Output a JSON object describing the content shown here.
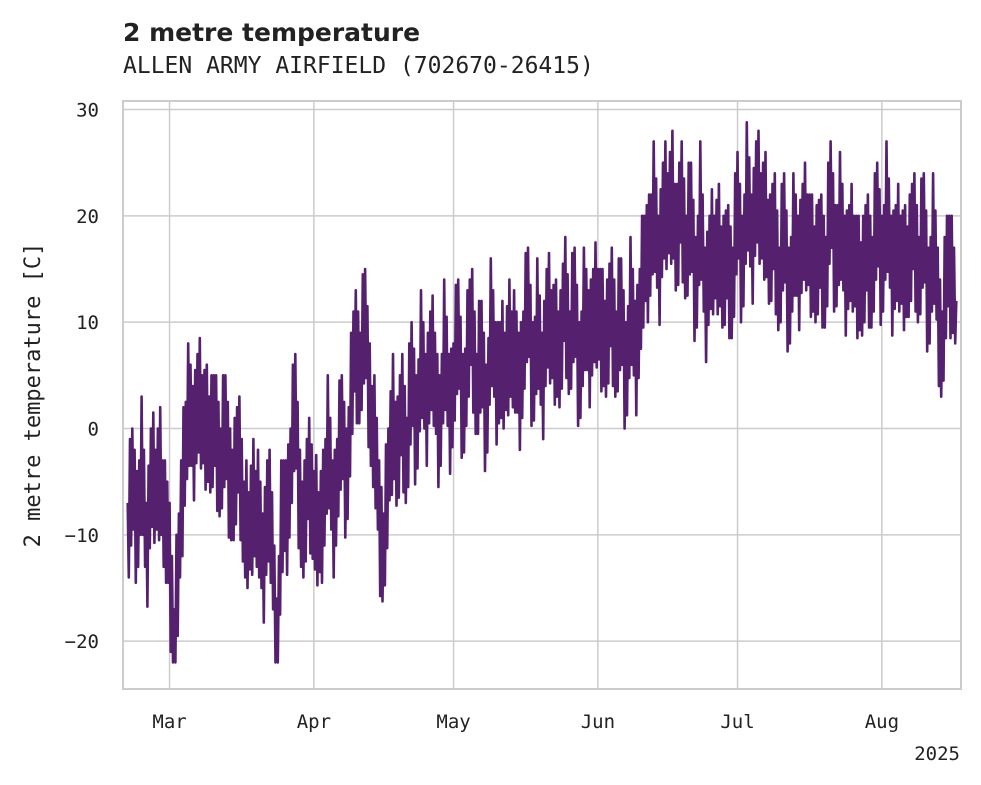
{
  "chart_data": {
    "type": "line",
    "title": "2 metre temperature",
    "subtitle": "ALLEN ARMY AIRFIELD (702670-26415)",
    "ylabel": "2 metre temperature [C]",
    "xlabel": "",
    "x_axis_year_label": "2025",
    "xlim": [
      "2025-02-19",
      "2025-08-18"
    ],
    "ylim": [
      -24.5,
      30.8
    ],
    "yticks": [
      -20,
      -10,
      0,
      10,
      20,
      30
    ],
    "xticks": [
      {
        "date": "2025-03-01",
        "label": "Mar"
      },
      {
        "date": "2025-04-01",
        "label": "Apr"
      },
      {
        "date": "2025-05-01",
        "label": "May"
      },
      {
        "date": "2025-06-01",
        "label": "Jun"
      },
      {
        "date": "2025-07-01",
        "label": "Jul"
      },
      {
        "date": "2025-08-01",
        "label": "Aug"
      }
    ],
    "grid": true,
    "line_color": "#55206e",
    "series": [
      {
        "sampling": "approx. 6-hourly",
        "points": [
          [
            "2025-02-20",
            -10
          ],
          [
            "2025-02-21",
            -6
          ],
          [
            "2025-02-22",
            -8
          ],
          [
            "2025-02-23",
            -4
          ],
          [
            "2025-02-24",
            -12
          ],
          [
            "2025-02-25",
            -3
          ],
          [
            "2025-02-26",
            -8
          ],
          [
            "2025-02-27",
            -2
          ],
          [
            "2025-02-28",
            -10
          ],
          [
            "2025-03-01",
            -12
          ],
          [
            "2025-03-02",
            -20
          ],
          [
            "2025-03-03",
            -14
          ],
          [
            "2025-03-04",
            -2
          ],
          [
            "2025-03-05",
            1
          ],
          [
            "2025-03-06",
            -1
          ],
          [
            "2025-03-07",
            4
          ],
          [
            "2025-03-08",
            -1
          ],
          [
            "2025-03-09",
            2
          ],
          [
            "2025-03-10",
            -2
          ],
          [
            "2025-03-11",
            0
          ],
          [
            "2025-03-12",
            -3
          ],
          [
            "2025-03-13",
            -1
          ],
          [
            "2025-03-14",
            -4
          ],
          [
            "2025-03-15",
            -6
          ],
          [
            "2025-03-16",
            -2
          ],
          [
            "2025-03-17",
            -8
          ],
          [
            "2025-03-18",
            -12
          ],
          [
            "2025-03-19",
            -5
          ],
          [
            "2025-03-20",
            -9
          ],
          [
            "2025-03-21",
            -13
          ],
          [
            "2025-03-22",
            -6
          ],
          [
            "2025-03-23",
            -12
          ],
          [
            "2025-03-24",
            -20
          ],
          [
            "2025-03-25",
            -10
          ],
          [
            "2025-03-26",
            -8
          ],
          [
            "2025-03-27",
            -3
          ],
          [
            "2025-03-28",
            1
          ],
          [
            "2025-03-29",
            -6
          ],
          [
            "2025-03-30",
            -10
          ],
          [
            "2025-03-31",
            -4
          ],
          [
            "2025-04-01",
            -7
          ],
          [
            "2025-04-02",
            -12
          ],
          [
            "2025-04-03",
            -6
          ],
          [
            "2025-04-04",
            -2
          ],
          [
            "2025-04-05",
            -8
          ],
          [
            "2025-04-06",
            -4
          ],
          [
            "2025-04-07",
            -1
          ],
          [
            "2025-04-08",
            -4
          ],
          [
            "2025-04-09",
            2
          ],
          [
            "2025-04-10",
            8
          ],
          [
            "2025-04-11",
            6
          ],
          [
            "2025-04-12",
            9
          ],
          [
            "2025-04-13",
            4
          ],
          [
            "2025-04-14",
            -2
          ],
          [
            "2025-04-15",
            -8
          ],
          [
            "2025-04-16",
            -11
          ],
          [
            "2025-04-17",
            -6
          ],
          [
            "2025-04-18",
            3
          ],
          [
            "2025-04-19",
            -4
          ],
          [
            "2025-04-20",
            2
          ],
          [
            "2025-04-21",
            -2
          ],
          [
            "2025-04-22",
            4
          ],
          [
            "2025-04-23",
            1
          ],
          [
            "2025-04-24",
            6
          ],
          [
            "2025-04-25",
            2
          ],
          [
            "2025-04-26",
            8
          ],
          [
            "2025-04-27",
            3
          ],
          [
            "2025-04-28",
            1
          ],
          [
            "2025-04-29",
            7
          ],
          [
            "2025-04-30",
            2
          ],
          [
            "2025-05-01",
            5
          ],
          [
            "2025-05-02",
            8
          ],
          [
            "2025-05-03",
            3
          ],
          [
            "2025-05-04",
            6
          ],
          [
            "2025-05-05",
            10
          ],
          [
            "2025-05-06",
            4
          ],
          [
            "2025-05-07",
            6
          ],
          [
            "2025-05-08",
            2
          ],
          [
            "2025-05-09",
            9
          ],
          [
            "2025-05-10",
            5
          ],
          [
            "2025-05-11",
            7
          ],
          [
            "2025-05-12",
            3
          ],
          [
            "2025-05-13",
            10
          ],
          [
            "2025-05-14",
            6
          ],
          [
            "2025-05-15",
            4
          ],
          [
            "2025-05-16",
            8
          ],
          [
            "2025-05-17",
            11
          ],
          [
            "2025-05-18",
            6
          ],
          [
            "2025-05-19",
            9
          ],
          [
            "2025-05-20",
            4
          ],
          [
            "2025-05-21",
            12
          ],
          [
            "2025-05-22",
            7
          ],
          [
            "2025-05-23",
            10
          ],
          [
            "2025-05-24",
            6
          ],
          [
            "2025-05-25",
            13
          ],
          [
            "2025-05-26",
            8
          ],
          [
            "2025-05-27",
            11
          ],
          [
            "2025-05-28",
            6
          ],
          [
            "2025-05-29",
            10
          ],
          [
            "2025-05-30",
            8
          ],
          [
            "2025-05-31",
            12
          ],
          [
            "2025-06-01",
            9
          ],
          [
            "2025-06-02",
            11
          ],
          [
            "2025-06-03",
            7
          ],
          [
            "2025-06-04",
            12
          ],
          [
            "2025-06-05",
            8
          ],
          [
            "2025-06-06",
            10
          ],
          [
            "2025-06-07",
            6
          ],
          [
            "2025-06-08",
            11
          ],
          [
            "2025-06-09",
            7
          ],
          [
            "2025-06-10",
            12
          ],
          [
            "2025-06-11",
            14
          ],
          [
            "2025-06-12",
            18
          ],
          [
            "2025-06-13",
            20
          ],
          [
            "2025-06-14",
            15
          ],
          [
            "2025-06-15",
            22
          ],
          [
            "2025-06-16",
            18
          ],
          [
            "2025-06-17",
            24
          ],
          [
            "2025-06-18",
            16
          ],
          [
            "2025-06-19",
            22
          ],
          [
            "2025-06-20",
            17
          ],
          [
            "2025-06-21",
            19
          ],
          [
            "2025-06-22",
            14
          ],
          [
            "2025-06-23",
            20
          ],
          [
            "2025-06-24",
            12
          ],
          [
            "2025-06-25",
            17
          ],
          [
            "2025-06-26",
            14
          ],
          [
            "2025-06-27",
            19
          ],
          [
            "2025-06-28",
            13
          ],
          [
            "2025-06-29",
            16
          ],
          [
            "2025-06-30",
            14
          ],
          [
            "2025-07-01",
            20
          ],
          [
            "2025-07-02",
            16
          ],
          [
            "2025-07-03",
            22
          ],
          [
            "2025-07-04",
            17
          ],
          [
            "2025-07-05",
            24
          ],
          [
            "2025-07-06",
            18
          ],
          [
            "2025-07-07",
            22
          ],
          [
            "2025-07-08",
            15
          ],
          [
            "2025-07-09",
            19
          ],
          [
            "2025-07-10",
            14
          ],
          [
            "2025-07-11",
            18
          ],
          [
            "2025-07-12",
            13
          ],
          [
            "2025-07-13",
            17
          ],
          [
            "2025-07-14",
            15
          ],
          [
            "2025-07-15",
            20
          ],
          [
            "2025-07-16",
            16
          ],
          [
            "2025-07-17",
            18
          ],
          [
            "2025-07-18",
            14
          ],
          [
            "2025-07-19",
            17
          ],
          [
            "2025-07-20",
            15
          ],
          [
            "2025-07-21",
            21
          ],
          [
            "2025-07-22",
            17
          ],
          [
            "2025-07-23",
            19
          ],
          [
            "2025-07-24",
            15
          ],
          [
            "2025-07-25",
            18
          ],
          [
            "2025-07-26",
            14
          ],
          [
            "2025-07-27",
            16
          ],
          [
            "2025-07-28",
            13
          ],
          [
            "2025-07-29",
            17
          ],
          [
            "2025-07-30",
            15
          ],
          [
            "2025-07-31",
            19
          ],
          [
            "2025-08-01",
            16
          ],
          [
            "2025-08-02",
            20
          ],
          [
            "2025-08-03",
            15
          ],
          [
            "2025-08-04",
            18
          ],
          [
            "2025-08-05",
            14
          ],
          [
            "2025-08-06",
            17
          ],
          [
            "2025-08-07",
            15
          ],
          [
            "2025-08-08",
            19
          ],
          [
            "2025-08-09",
            15
          ],
          [
            "2025-08-10",
            18
          ],
          [
            "2025-08-11",
            13
          ],
          [
            "2025-08-12",
            17
          ],
          [
            "2025-08-13",
            12
          ],
          [
            "2025-08-14",
            8
          ],
          [
            "2025-08-15",
            14
          ],
          [
            "2025-08-16",
            16
          ],
          [
            "2025-08-17",
            12
          ]
        ]
      }
    ]
  }
}
